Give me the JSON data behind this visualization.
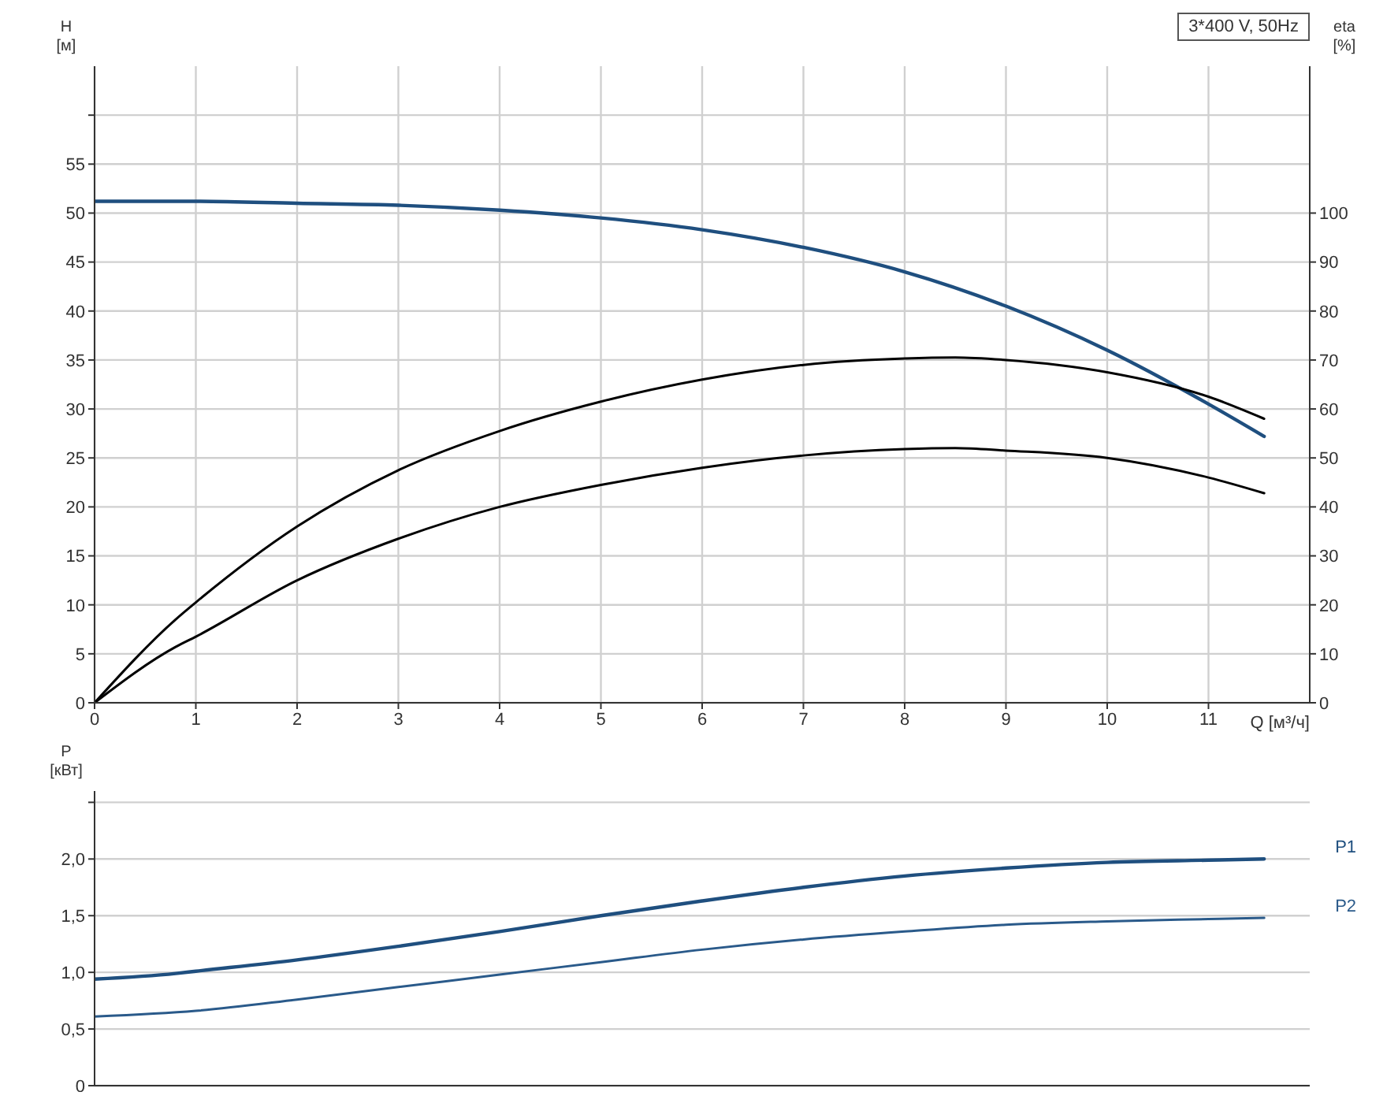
{
  "chart_data": [
    {
      "type": "line",
      "xlabel": "Q [м³/ч]",
      "ylabel": "H [м]",
      "y2label": "eta [%]",
      "annotations": [
        "3*400 V, 50Hz"
      ],
      "grid": true,
      "xlim": [
        0,
        12
      ],
      "xticks": [
        0,
        1,
        2,
        3,
        4,
        5,
        6,
        7,
        8,
        9,
        10,
        11
      ],
      "ylim": [
        0,
        65
      ],
      "yticks": [
        0,
        5,
        10,
        15,
        20,
        25,
        30,
        35,
        40,
        45,
        50,
        55,
        {
          "value": 60,
          "label": null
        }
      ],
      "y2lim": [
        0,
        130
      ],
      "y2ticks": [
        0,
        10,
        20,
        30,
        40,
        50,
        60,
        70,
        80,
        90,
        100
      ],
      "series": [
        {
          "color": "#1f4f7f",
          "x": [
            0,
            0.8,
            1,
            2,
            3,
            4,
            5,
            6,
            7,
            8,
            9,
            10,
            11,
            11.55
          ],
          "values": [
            51.2,
            51.2,
            51.2,
            51,
            50.8,
            50.3,
            49.5,
            48.3,
            46.5,
            44,
            40.5,
            36,
            30.5,
            27.2
          ]
        },
        {
          "color": "#000000",
          "axis": "y2",
          "x": [
            0,
            0.8,
            1,
            2,
            3,
            4,
            5,
            6,
            7,
            8,
            8.5,
            9,
            10,
            11,
            11.55
          ],
          "values": [
            0,
            17,
            20.5,
            36,
            47.5,
            55.5,
            61.5,
            66,
            69,
            70.3,
            70.5,
            70,
            67.5,
            62.5,
            58
          ]
        },
        {
          "color": "#000000",
          "axis": "y2",
          "x": [
            0,
            0.8,
            1,
            2,
            3,
            4,
            5,
            6,
            7,
            8,
            8.5,
            9,
            10,
            11,
            11.55
          ],
          "values": [
            0,
            11.4,
            13.5,
            25,
            33.5,
            40,
            44.5,
            48,
            50.5,
            51.8,
            52,
            51.5,
            50,
            46,
            42.8
          ]
        }
      ]
    },
    {
      "type": "line",
      "ylabel": "P [кВт]",
      "grid": true,
      "tick_labels": "y",
      "xlim": [
        0,
        12
      ],
      "xticks": [
        0,
        1,
        2,
        3,
        4,
        5,
        6,
        7,
        8,
        9,
        10,
        11
      ],
      "ylim": [
        0,
        2.6
      ],
      "yticks": [
        0,
        {
          "value": 0.5,
          "label": "0,5"
        },
        {
          "value": 1,
          "label": "1,0"
        },
        {
          "value": 1.5,
          "label": "1,5"
        },
        {
          "value": 2,
          "label": "2,0"
        },
        {
          "value": 2.5,
          "label": null
        }
      ],
      "series": [
        {
          "name": "P1",
          "color": "#1f4f7f",
          "x": [
            0,
            0.8,
            1,
            2,
            3,
            4,
            5,
            6,
            7,
            8,
            9,
            10,
            11,
            11.55
          ],
          "values": [
            0.94,
            0.99,
            1.01,
            1.11,
            1.23,
            1.36,
            1.5,
            1.63,
            1.75,
            1.85,
            1.92,
            1.97,
            1.99,
            2.0
          ]
        },
        {
          "name": "P2",
          "color": "#2a5a8a",
          "x": [
            0,
            1,
            2,
            3,
            4,
            5,
            6,
            7,
            8,
            9,
            10,
            11,
            11.55
          ],
          "values": [
            0.61,
            0.66,
            0.76,
            0.87,
            0.98,
            1.09,
            1.2,
            1.29,
            1.36,
            1.42,
            1.45,
            1.47,
            1.48
          ]
        }
      ]
    }
  ]
}
